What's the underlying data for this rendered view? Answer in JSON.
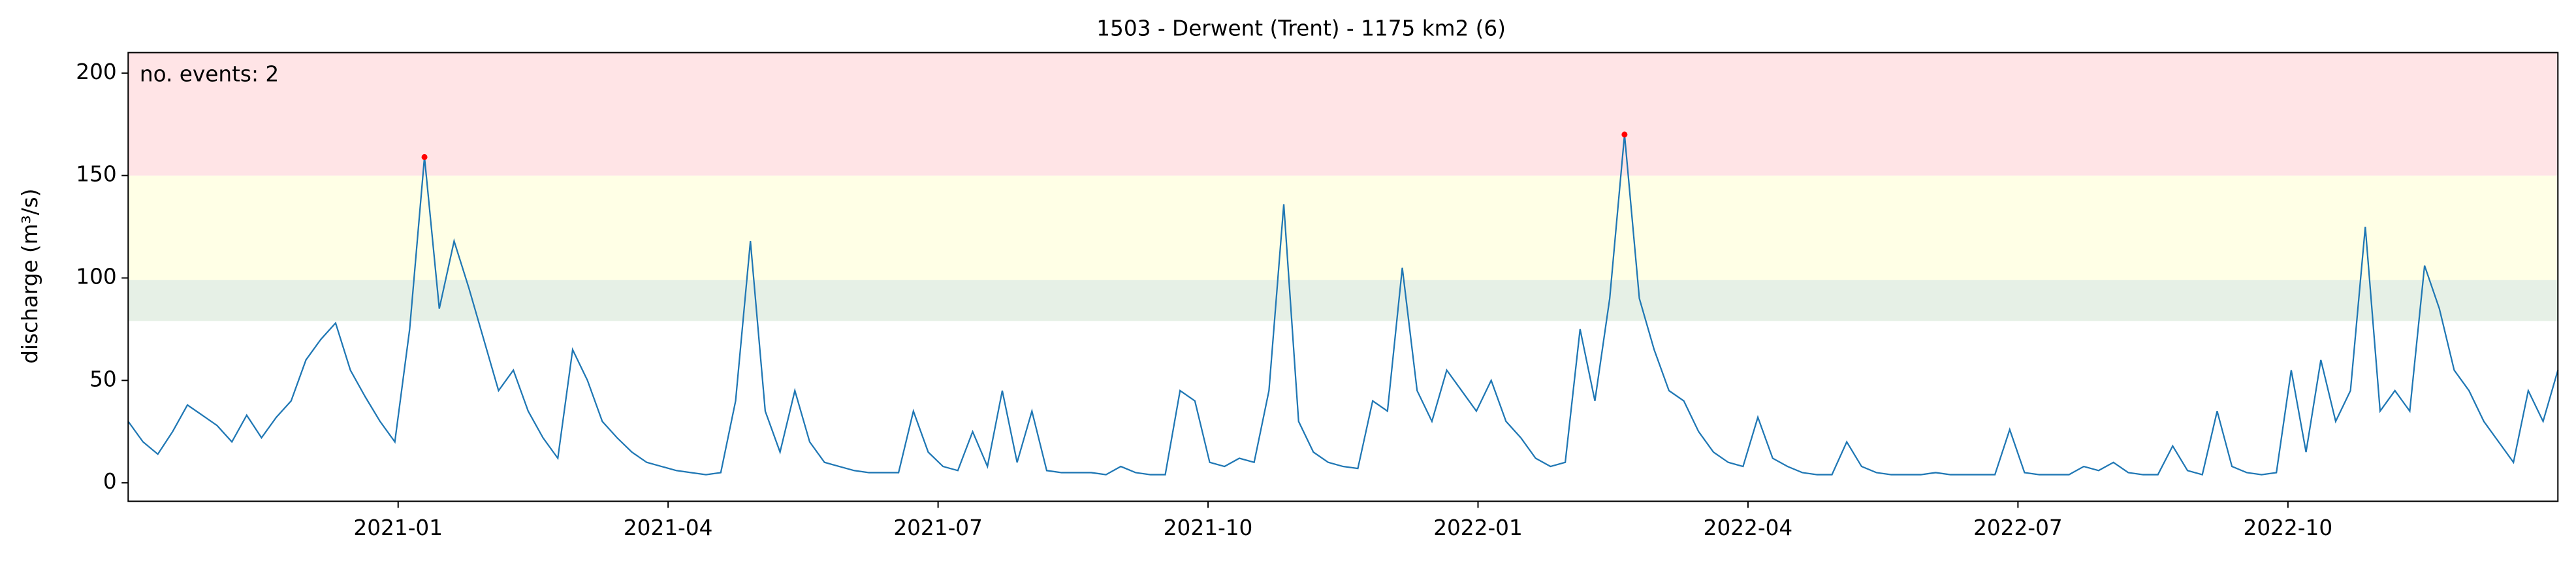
{
  "chart_data": {
    "type": "line",
    "title": "1503 - Derwent (Trent) - 1175 km2 (6)",
    "ylabel": "discharge (m³/s)",
    "annotation": "no. events: 2",
    "annotation_color": "red",
    "xlim": [
      "2020-10",
      "2023-01"
    ],
    "xticks": [
      "2021-01",
      "2021-04",
      "2021-07",
      "2021-10",
      "2022-01",
      "2022-04",
      "2022-07",
      "2022-10"
    ],
    "ylim": [
      -9,
      210
    ],
    "yticks": [
      0,
      50,
      100,
      150,
      200
    ],
    "bands": [
      {
        "range": [
          79,
          99
        ],
        "color": "#e6f0e6"
      },
      {
        "range": [
          99,
          150
        ],
        "color": "#ffffe6"
      },
      {
        "range": [
          150,
          210
        ],
        "color": "#ffe4e6"
      }
    ],
    "series": [
      {
        "color": "#1f77b4",
        "values": [
          30,
          20,
          14,
          25,
          38,
          33,
          28,
          20,
          33,
          22,
          32,
          40,
          60,
          70,
          78,
          55,
          42,
          30,
          20,
          75,
          159,
          85,
          118,
          95,
          70,
          45,
          55,
          35,
          22,
          12,
          65,
          50,
          30,
          22,
          15,
          10,
          8,
          6,
          5,
          4,
          5,
          40,
          118,
          35,
          15,
          45,
          20,
          10,
          8,
          6,
          5,
          5,
          5,
          35,
          15,
          8,
          6,
          25,
          8,
          45,
          10,
          35,
          6,
          5,
          5,
          5,
          4,
          8,
          5,
          4,
          4,
          45,
          40,
          10,
          8,
          12,
          10,
          45,
          136,
          30,
          15,
          10,
          8,
          7,
          40,
          35,
          105,
          45,
          30,
          55,
          45,
          35,
          50,
          30,
          22,
          12,
          8,
          10,
          75,
          40,
          90,
          170,
          90,
          65,
          45,
          40,
          25,
          15,
          10,
          8,
          32,
          12,
          8,
          5,
          4,
          4,
          20,
          8,
          5,
          4,
          4,
          4,
          5,
          4,
          4,
          4,
          4,
          26,
          5,
          4,
          4,
          4,
          8,
          6,
          10,
          5,
          4,
          4,
          18,
          6,
          4,
          35,
          8,
          5,
          4,
          5,
          55,
          15,
          60,
          30,
          45,
          125,
          35,
          45,
          35,
          106,
          85,
          55,
          45,
          30,
          20,
          10,
          45,
          30,
          55
        ]
      },
      {
        "color": "red",
        "values": [
          null,
          null,
          null,
          null,
          null,
          null,
          null,
          null,
          null,
          null,
          null,
          null,
          null,
          null,
          null,
          null,
          null,
          null,
          null,
          null,
          159,
          null,
          null,
          null,
          null,
          null,
          null,
          null,
          null,
          null,
          null,
          null,
          null,
          null,
          null,
          null,
          null,
          null,
          null,
          null,
          null,
          null,
          null,
          null,
          null,
          null,
          null,
          null,
          null,
          null,
          null,
          null,
          null,
          null,
          null,
          null,
          null,
          null,
          null,
          null,
          null,
          null,
          null,
          null,
          null,
          null,
          null,
          null,
          null,
          null,
          null,
          null,
          null,
          null,
          null,
          null,
          null,
          null,
          null,
          null,
          null,
          null,
          null,
          null,
          null,
          null,
          null,
          null,
          null,
          null,
          null,
          null,
          null,
          null,
          null,
          null,
          null,
          null,
          null,
          null,
          null,
          170,
          null,
          null,
          null,
          null,
          null,
          null,
          null,
          null,
          null,
          null,
          null,
          null,
          null,
          null,
          null,
          null,
          null,
          null,
          null,
          null,
          null,
          null,
          null,
          null,
          null,
          null,
          null,
          null,
          null,
          null,
          null,
          null,
          null,
          null,
          null,
          null,
          null,
          null,
          null,
          null,
          null,
          null,
          null,
          null,
          null,
          null,
          null,
          null,
          null,
          null,
          null,
          null,
          null,
          null,
          null,
          null,
          null,
          null,
          null,
          null,
          null,
          null,
          null
        ]
      }
    ]
  }
}
